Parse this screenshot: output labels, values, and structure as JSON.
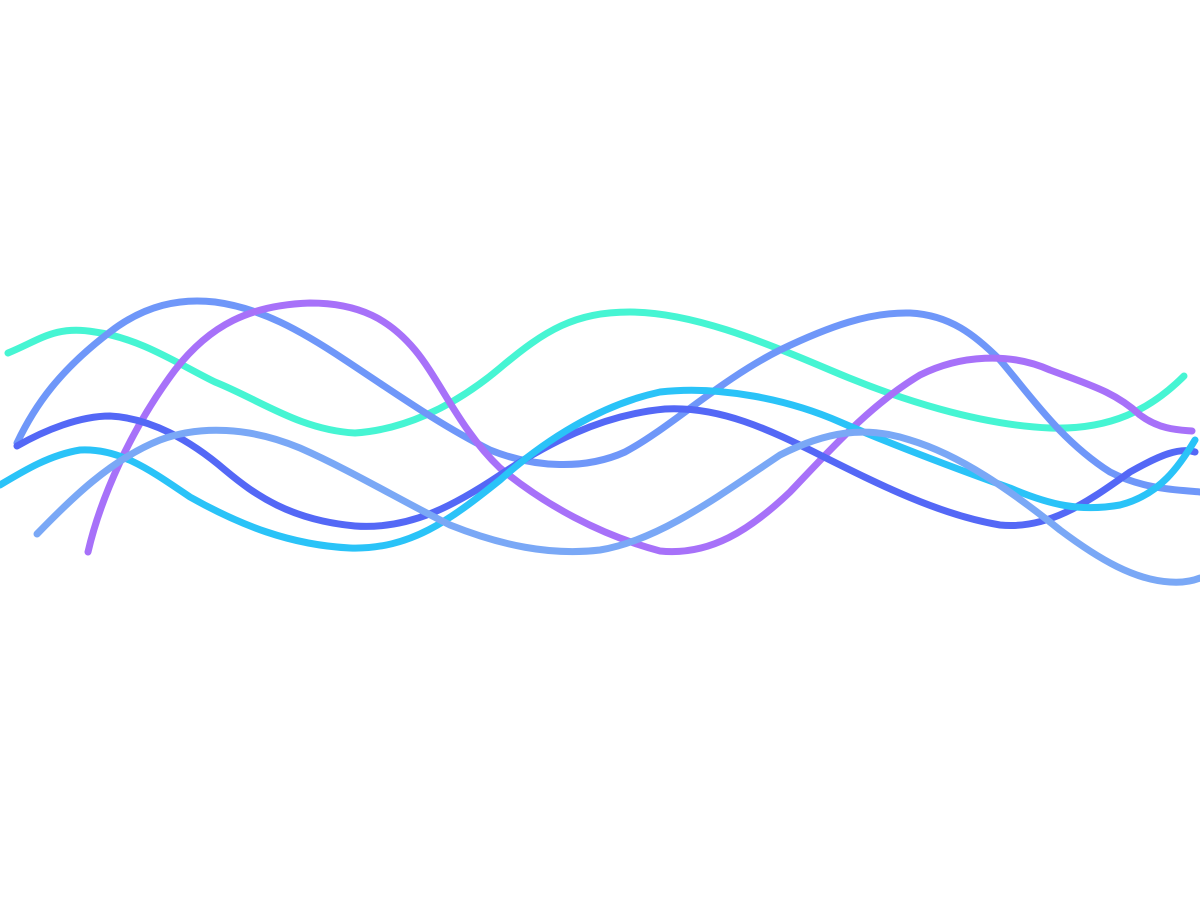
{
  "background": "#ffffff",
  "waves": [
    {
      "id": "wave-aqua",
      "color": "#46f5d3"
    },
    {
      "id": "wave-periwinkle",
      "color": "#6f97f9"
    },
    {
      "id": "wave-violet",
      "color": "#a771f9"
    },
    {
      "id": "wave-indigo",
      "color": "#5468f6"
    },
    {
      "id": "wave-sky",
      "color": "#2ac3f8"
    },
    {
      "id": "wave-light-blue",
      "color": "#7aa8f6"
    }
  ]
}
